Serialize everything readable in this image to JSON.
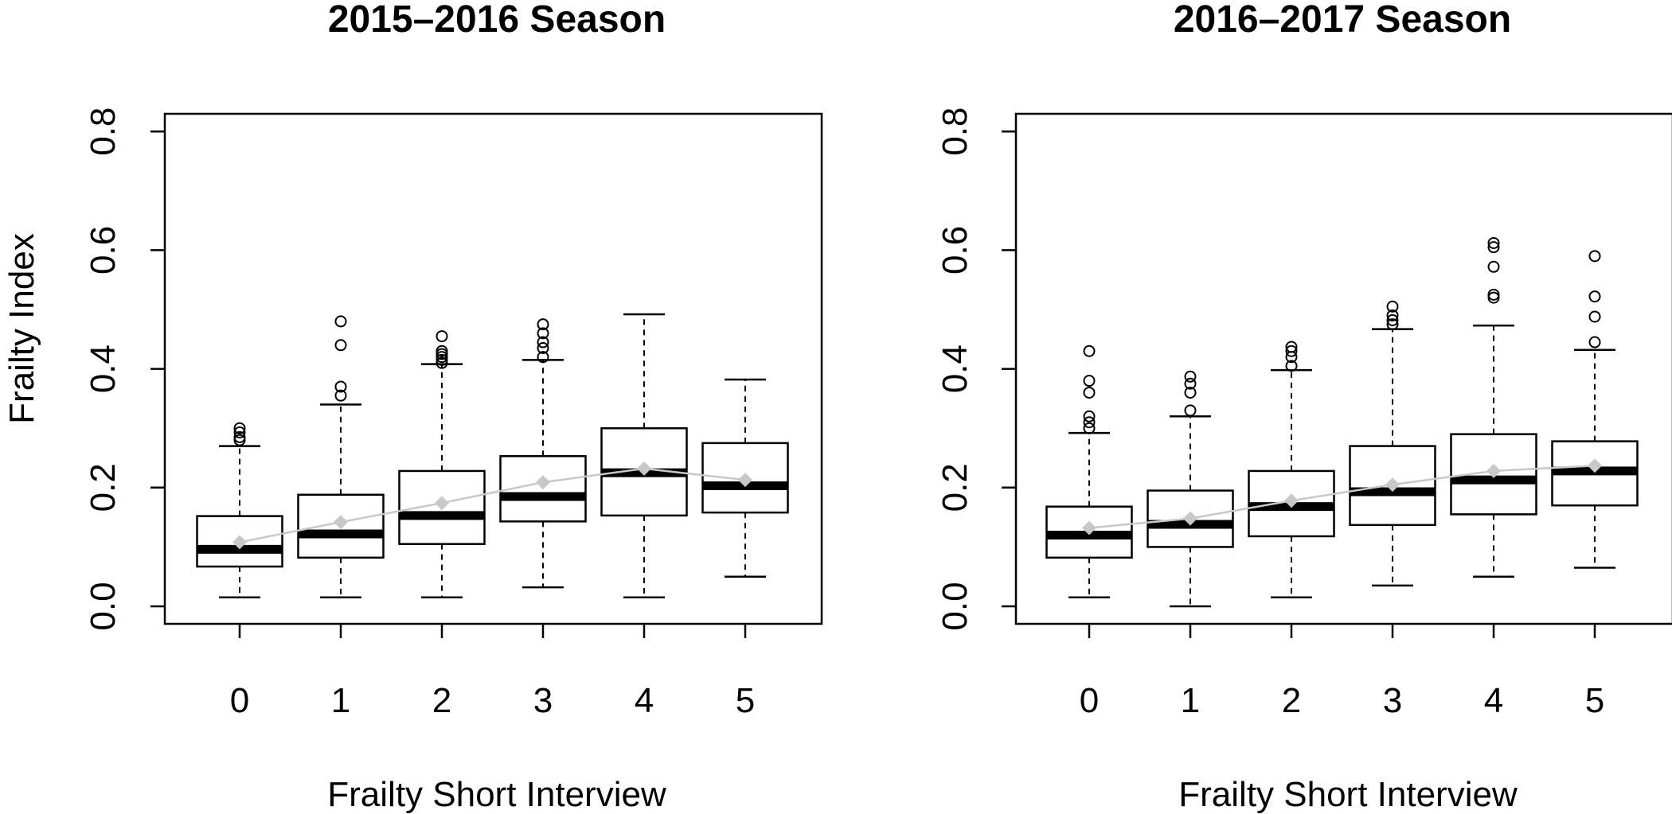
{
  "colors": {
    "box": "#000000",
    "mean_marker": "#c8c8c8",
    "mean_line": "#c8c8c8"
  },
  "chart_data": [
    {
      "type": "box",
      "title": "2015–2016 Season",
      "xlabel": "Frailty Short Interview",
      "ylabel": "Frailty Index",
      "ylim": [
        0,
        0.8
      ],
      "yticks": [
        "0.0",
        "0.2",
        "0.4",
        "0.6",
        "0.8"
      ],
      "categories": [
        "0",
        "1",
        "2",
        "3",
        "4",
        "5"
      ],
      "boxes": [
        {
          "whisker_low": 0.015,
          "q1": 0.067,
          "median": 0.096,
          "q3": 0.152,
          "whisker_high": 0.27,
          "mean": 0.108,
          "outliers": [
            0.28,
            0.285,
            0.293,
            0.3
          ]
        },
        {
          "whisker_low": 0.015,
          "q1": 0.082,
          "median": 0.122,
          "q3": 0.188,
          "whisker_high": 0.34,
          "mean": 0.142,
          "outliers": [
            0.355,
            0.37,
            0.44,
            0.48
          ]
        },
        {
          "whisker_low": 0.015,
          "q1": 0.105,
          "median": 0.153,
          "q3": 0.228,
          "whisker_high": 0.408,
          "mean": 0.174,
          "outliers": [
            0.41,
            0.415,
            0.42,
            0.425,
            0.43,
            0.455
          ]
        },
        {
          "whisker_low": 0.032,
          "q1": 0.143,
          "median": 0.185,
          "q3": 0.253,
          "whisker_high": 0.415,
          "mean": 0.209,
          "outliers": [
            0.42,
            0.435,
            0.445,
            0.46,
            0.475
          ]
        },
        {
          "whisker_low": 0.015,
          "q1": 0.153,
          "median": 0.225,
          "q3": 0.3,
          "whisker_high": 0.492,
          "mean": 0.232,
          "outliers": []
        },
        {
          "whisker_low": 0.05,
          "q1": 0.158,
          "median": 0.203,
          "q3": 0.275,
          "whisker_high": 0.382,
          "mean": 0.213,
          "outliers": []
        }
      ]
    },
    {
      "type": "box",
      "title": "2016–2017 Season",
      "xlabel": "Frailty Short Interview",
      "ylabel": "",
      "ylim": [
        0,
        0.8
      ],
      "yticks": [
        "0.0",
        "0.2",
        "0.4",
        "0.6",
        "0.8"
      ],
      "categories": [
        "0",
        "1",
        "2",
        "3",
        "4",
        "5"
      ],
      "boxes": [
        {
          "whisker_low": 0.015,
          "q1": 0.082,
          "median": 0.12,
          "q3": 0.168,
          "whisker_high": 0.292,
          "mean": 0.132,
          "outliers": [
            0.3,
            0.31,
            0.32,
            0.36,
            0.38,
            0.43
          ]
        },
        {
          "whisker_low": 0.0,
          "q1": 0.1,
          "median": 0.138,
          "q3": 0.195,
          "whisker_high": 0.32,
          "mean": 0.148,
          "outliers": [
            0.33,
            0.36,
            0.375,
            0.387
          ]
        },
        {
          "whisker_low": 0.015,
          "q1": 0.118,
          "median": 0.168,
          "q3": 0.228,
          "whisker_high": 0.398,
          "mean": 0.178,
          "outliers": [
            0.405,
            0.42,
            0.43,
            0.437
          ]
        },
        {
          "whisker_low": 0.035,
          "q1": 0.137,
          "median": 0.193,
          "q3": 0.27,
          "whisker_high": 0.467,
          "mean": 0.205,
          "outliers": [
            0.475,
            0.482,
            0.49,
            0.505
          ]
        },
        {
          "whisker_low": 0.05,
          "q1": 0.155,
          "median": 0.213,
          "q3": 0.29,
          "whisker_high": 0.473,
          "mean": 0.228,
          "outliers": [
            0.52,
            0.525,
            0.572,
            0.605,
            0.612
          ]
        },
        {
          "whisker_low": 0.065,
          "q1": 0.17,
          "median": 0.228,
          "q3": 0.278,
          "whisker_high": 0.432,
          "mean": 0.237,
          "outliers": [
            0.445,
            0.488,
            0.522,
            0.59
          ]
        }
      ]
    }
  ]
}
